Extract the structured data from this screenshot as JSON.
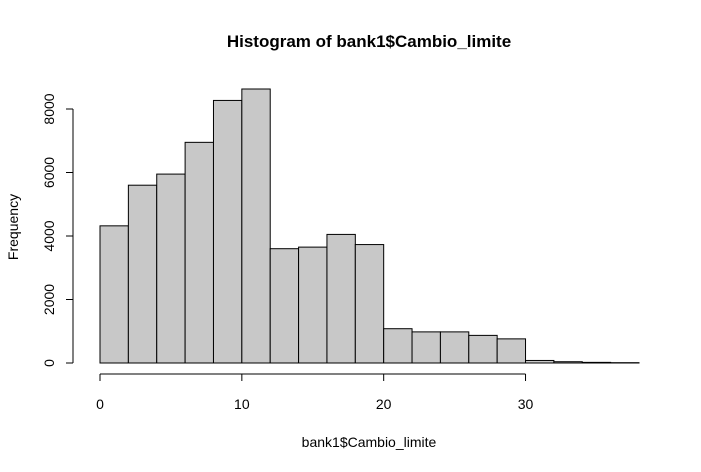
{
  "chart_data": {
    "type": "bar",
    "title": "Histogram of bank1$Cambio_limite",
    "xlabel": "bank1$Cambio_limite",
    "ylabel": "Frequency",
    "bins": [
      [
        0,
        2
      ],
      [
        2,
        4
      ],
      [
        4,
        6
      ],
      [
        6,
        8
      ],
      [
        8,
        10
      ],
      [
        10,
        12
      ],
      [
        12,
        14
      ],
      [
        14,
        16
      ],
      [
        16,
        18
      ],
      [
        18,
        20
      ],
      [
        20,
        22
      ],
      [
        22,
        24
      ],
      [
        24,
        26
      ],
      [
        26,
        28
      ],
      [
        28,
        30
      ],
      [
        30,
        32
      ],
      [
        32,
        34
      ],
      [
        34,
        36
      ],
      [
        36,
        38
      ]
    ],
    "values": [
      4320,
      5600,
      5950,
      6950,
      8270,
      8630,
      3600,
      3650,
      4050,
      3730,
      1080,
      980,
      980,
      870,
      760,
      80,
      40,
      20,
      10
    ],
    "xlim": [
      0,
      38
    ],
    "ylim": [
      0,
      8630
    ],
    "xticks": [
      0,
      10,
      20,
      30
    ],
    "yticks": [
      0,
      2000,
      4000,
      6000,
      8000
    ],
    "xtick_labels": [
      "0",
      "10",
      "20",
      "30"
    ],
    "ytick_labels": [
      "0",
      "2000",
      "4000",
      "6000",
      "8000"
    ],
    "bar_color": "#c8c8c8",
    "grid": false
  }
}
